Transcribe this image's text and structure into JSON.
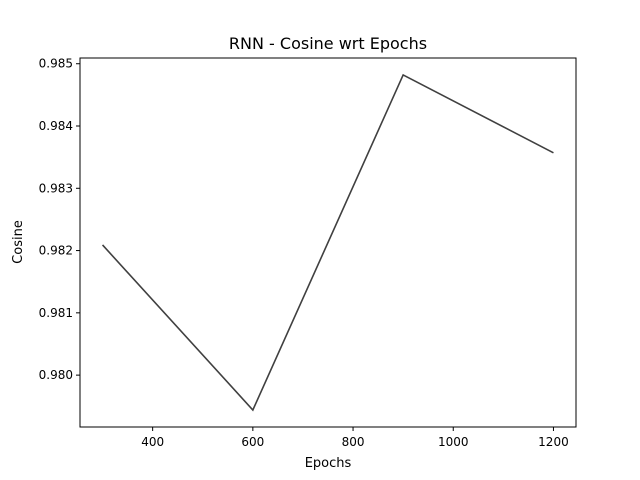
{
  "chart_data": {
    "type": "line",
    "title": "RNN - Cosine wrt Epochs",
    "xlabel": "Epochs",
    "ylabel": "Cosine",
    "x": [
      300,
      600,
      900,
      1200
    ],
    "series": [
      {
        "values": [
          0.98209,
          0.97944,
          0.98482,
          0.98357
        ],
        "color": "#404040"
      }
    ],
    "xlim": [
      255,
      1245
    ],
    "ylim": [
      0.979167,
      0.985092
    ],
    "xticks": [
      400,
      600,
      800,
      1000,
      1200
    ],
    "xtick_labels": [
      "400",
      "600",
      "800",
      "1000",
      "1200"
    ],
    "yticks": [
      0.98,
      0.981,
      0.982,
      0.983,
      0.984,
      0.985
    ],
    "ytick_labels": [
      "0.980",
      "0.981",
      "0.982",
      "0.983",
      "0.984",
      "0.985"
    ],
    "grid": false,
    "legend": "none"
  }
}
